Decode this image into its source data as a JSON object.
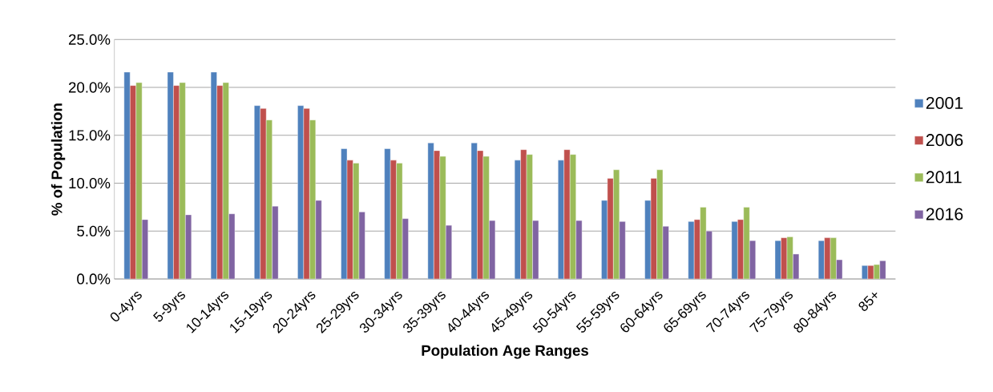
{
  "chart_data": {
    "type": "bar",
    "xlabel": "Population Age Ranges",
    "ylabel": "% of Population",
    "categories": [
      "0-4yrs",
      "5-9yrs",
      "10-14yrs",
      "15-19yrs",
      "20-24yrs",
      "25-29yrs",
      "30-34yrs",
      "35-39yrs",
      "40-44yrs",
      "45-49yrs",
      "50-54yrs",
      "55-59yrs",
      "60-64yrs",
      "65-69yrs",
      "70-74yrs",
      "75-79yrs",
      "80-84yrs",
      "85+"
    ],
    "series": [
      {
        "name": "2001",
        "color": "#4f81bd",
        "values": [
          21.6,
          21.6,
          21.6,
          18.1,
          18.1,
          13.6,
          13.6,
          14.2,
          14.2,
          12.4,
          12.4,
          8.2,
          8.2,
          6.0,
          6.0,
          4.0,
          4.0,
          1.4
        ]
      },
      {
        "name": "2006",
        "color": "#c0504d",
        "values": [
          20.2,
          20.2,
          20.2,
          17.8,
          17.8,
          12.4,
          12.4,
          13.4,
          13.4,
          13.5,
          13.5,
          10.5,
          10.5,
          6.2,
          6.2,
          4.3,
          4.3,
          1.4
        ]
      },
      {
        "name": "2011",
        "color": "#9bbb59",
        "values": [
          20.5,
          20.5,
          20.5,
          16.6,
          16.6,
          12.1,
          12.1,
          12.8,
          12.8,
          13.0,
          13.0,
          11.4,
          11.4,
          7.5,
          7.5,
          4.4,
          4.3,
          1.5
        ]
      },
      {
        "name": "2016",
        "color": "#8064a2",
        "values": [
          6.2,
          6.7,
          6.8,
          7.6,
          8.2,
          7.0,
          6.3,
          5.6,
          6.1,
          6.1,
          6.1,
          6.0,
          5.5,
          5.0,
          4.0,
          2.6,
          2.0,
          1.9
        ]
      }
    ],
    "ylim": [
      0,
      25
    ],
    "yticks": [
      {
        "value": 0,
        "label": "0.0%"
      },
      {
        "value": 5,
        "label": "5.0%"
      },
      {
        "value": 10,
        "label": "10.0%"
      },
      {
        "value": 15,
        "label": "15.0%"
      },
      {
        "value": 20,
        "label": "20.0%"
      },
      {
        "value": 25,
        "label": "25.0%"
      }
    ],
    "grid": "y",
    "legend": "right"
  }
}
